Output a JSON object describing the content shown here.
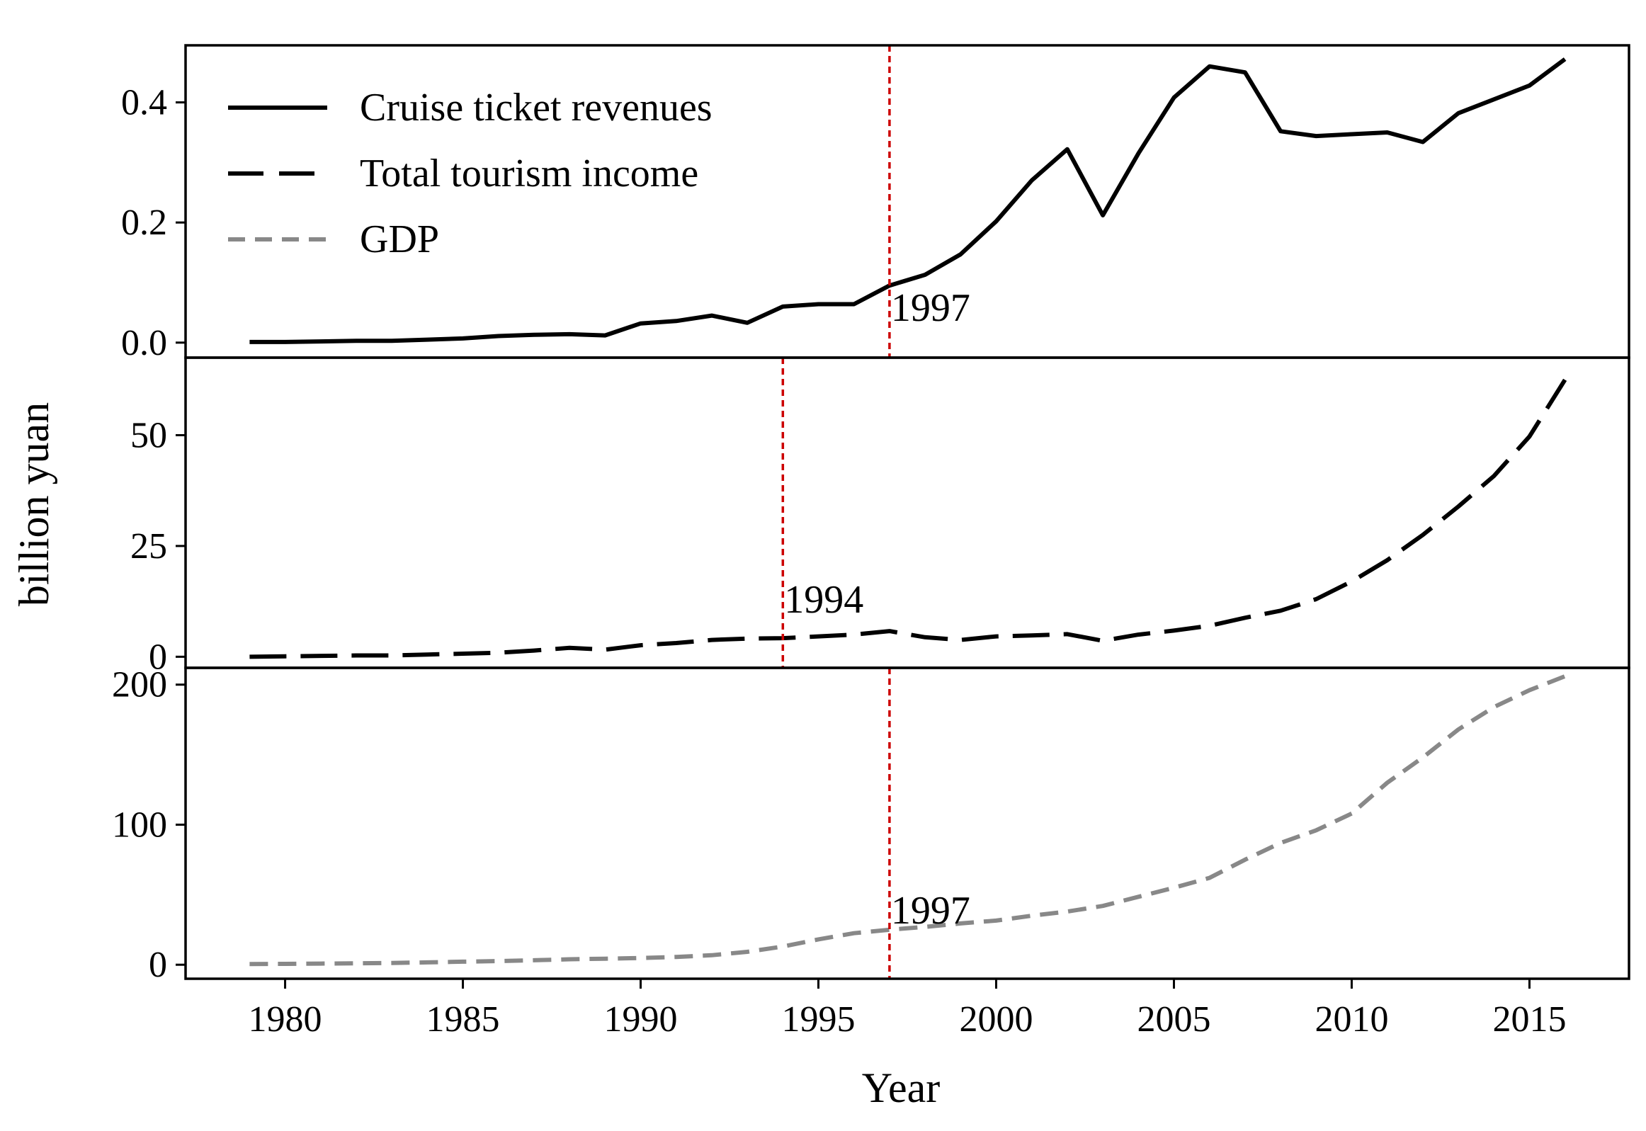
{
  "chart_data": {
    "type": "line",
    "xlabel": "Year",
    "ylabel": "billion yuan",
    "xlim": [
      1977.2,
      2017.8
    ],
    "x_ticks": [
      1980,
      1985,
      1990,
      1995,
      2000,
      2005,
      2010,
      2015
    ],
    "x_tick_labels": [
      "1980",
      "1985",
      "1990",
      "1995",
      "2000",
      "2005",
      "2010",
      "2015"
    ],
    "legend": {
      "position": "top-left",
      "entries": [
        {
          "label": "Cruise ticket revenues",
          "series": "cruise"
        },
        {
          "label": "Total tourism income",
          "series": "tourism"
        },
        {
          "label": "GDP",
          "series": "gdp"
        }
      ]
    },
    "panels": [
      {
        "id": "cruise",
        "series_name": "Cruise ticket revenues",
        "color": "#000000",
        "line_style": "solid",
        "ylim": [
          -0.025,
          0.495
        ],
        "y_ticks": [
          0.0,
          0.2,
          0.4
        ],
        "y_tick_labels": [
          "0.0",
          "0.2",
          "0.4"
        ],
        "break_year": 1997,
        "break_label": "1997",
        "break_color": "#cc0000",
        "x": [
          1979,
          1980,
          1981,
          1982,
          1983,
          1984,
          1985,
          1986,
          1987,
          1988,
          1989,
          1990,
          1991,
          1992,
          1993,
          1994,
          1995,
          1996,
          1997,
          1998,
          1999,
          2000,
          2001,
          2002,
          2003,
          2004,
          2005,
          2006,
          2007,
          2008,
          2009,
          2010,
          2011,
          2012,
          2013,
          2014,
          2015,
          2016
        ],
        "y": [
          0.001,
          0.001,
          0.002,
          0.003,
          0.003,
          0.005,
          0.007,
          0.011,
          0.013,
          0.014,
          0.012,
          0.032,
          0.036,
          0.045,
          0.033,
          0.06,
          0.064,
          0.064,
          0.095,
          0.113,
          0.147,
          0.202,
          0.27,
          0.322,
          0.212,
          0.315,
          0.408,
          0.46,
          0.45,
          0.352,
          0.344,
          0.347,
          0.35,
          0.334,
          0.382,
          0.405,
          0.428,
          0.472
        ]
      },
      {
        "id": "tourism",
        "series_name": "Total tourism income",
        "color": "#000000",
        "line_style": "long-dash",
        "ylim": [
          -2.5,
          67.5
        ],
        "y_ticks": [
          0,
          25,
          50
        ],
        "y_tick_labels": [
          "0",
          "25",
          "50"
        ],
        "break_year": 1994,
        "break_label": "1994",
        "break_color": "#cc0000",
        "x": [
          1979,
          1980,
          1981,
          1982,
          1983,
          1984,
          1985,
          1986,
          1987,
          1988,
          1989,
          1990,
          1991,
          1992,
          1993,
          1994,
          1995,
          1996,
          1997,
          1998,
          1999,
          2000,
          2001,
          2002,
          2003,
          2004,
          2005,
          2006,
          2007,
          2008,
          2009,
          2010,
          2011,
          2012,
          2013,
          2014,
          2015,
          2016
        ],
        "y": [
          0.0,
          0.1,
          0.2,
          0.3,
          0.3,
          0.5,
          0.7,
          0.9,
          1.4,
          2.0,
          1.6,
          2.6,
          3.1,
          3.8,
          4.1,
          4.2,
          4.6,
          5.0,
          5.8,
          4.4,
          3.8,
          4.6,
          4.8,
          5.1,
          3.6,
          5.0,
          5.9,
          7.0,
          8.8,
          10.4,
          13.0,
          17.0,
          21.8,
          27.5,
          33.9,
          40.8,
          49.7,
          62.5
        ]
      },
      {
        "id": "gdp",
        "series_name": "GDP",
        "color": "#888888",
        "line_style": "dash",
        "ylim": [
          -10,
          212
        ],
        "y_ticks": [
          0,
          100,
          200
        ],
        "y_tick_labels": [
          "0",
          "100",
          "200"
        ],
        "break_year": 1997,
        "break_label": "1997",
        "break_color": "#cc0000",
        "x": [
          1979,
          1980,
          1981,
          1982,
          1983,
          1984,
          1985,
          1986,
          1987,
          1988,
          1989,
          1990,
          1991,
          1992,
          1993,
          1994,
          1995,
          1996,
          1997,
          1998,
          1999,
          2000,
          2001,
          2002,
          2003,
          2004,
          2005,
          2006,
          2007,
          2008,
          2009,
          2010,
          2011,
          2012,
          2013,
          2014,
          2015,
          2016
        ],
        "y": [
          0.5,
          0.6,
          0.8,
          1.0,
          1.3,
          1.7,
          2.2,
          2.6,
          3.2,
          3.9,
          4.3,
          4.8,
          5.6,
          6.8,
          9.2,
          13.0,
          18.1,
          22.5,
          25.0,
          27.0,
          29.5,
          31.5,
          35.0,
          38.0,
          42.0,
          48.5,
          55.0,
          62.0,
          75.0,
          87.0,
          96.0,
          108.0,
          130.0,
          148.0,
          168.0,
          184.0,
          196.0,
          206.0
        ]
      }
    ]
  }
}
